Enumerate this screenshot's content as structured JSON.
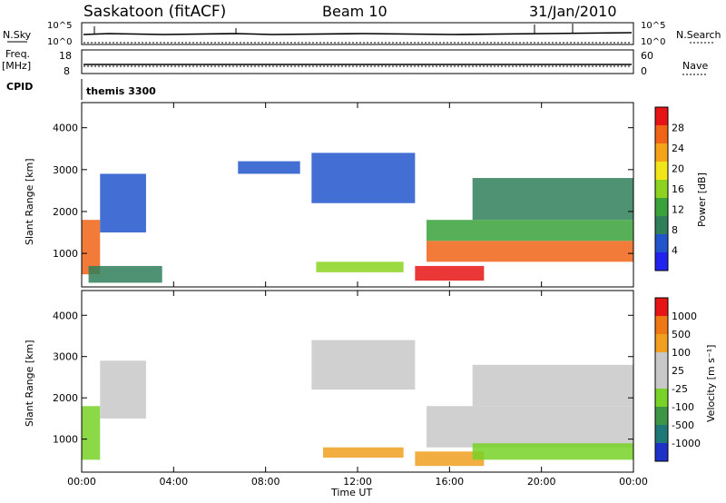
{
  "header": {
    "station": "Saskatoon (fitACF)",
    "beam": "Beam 10",
    "date": "31/Jan/2010"
  },
  "status_panel": {
    "nsky_label": "N.Sky",
    "nsearch_label": "N.Search",
    "freq_label": "Freq.",
    "freq_unit": "[MHz]",
    "nave_label": "Nave",
    "cpid_label": "CPID",
    "cpid_value": "themis 3300",
    "noise_ticks": [
      "10^5",
      "10^0"
    ],
    "freq_ticks": [
      "18",
      "8"
    ],
    "nave_ticks": [
      "60",
      "0"
    ]
  },
  "chart_data": [
    {
      "type": "heatmap",
      "name": "power",
      "ylabel": "Slant Range [km]",
      "xlabel": "",
      "x_ticks": [
        "00:00",
        "04:00",
        "08:00",
        "12:00",
        "16:00",
        "20:00",
        "00:00"
      ],
      "y_ticks": [
        "1000",
        "2000",
        "3000",
        "4000"
      ],
      "xlim_hours": [
        0,
        24
      ],
      "ylim_km": [
        200,
        4600
      ],
      "colorbar": {
        "label": "Power [dB]",
        "ticks": [
          "4",
          "8",
          "12",
          "16",
          "20",
          "24",
          "28"
        ],
        "colors": [
          "#2222ee",
          "#2255cc",
          "#2f7f5a",
          "#3aa23a",
          "#8cd21e",
          "#f0e619",
          "#f5a41a",
          "#f06418",
          "#e61414"
        ]
      },
      "regions": [
        {
          "t0": 0.0,
          "t1": 0.8,
          "r0": 500,
          "r1": 1800,
          "level": 7
        },
        {
          "t0": 0.8,
          "t1": 2.8,
          "r0": 1500,
          "r1": 2900,
          "level": 1
        },
        {
          "t0": 0.3,
          "t1": 3.5,
          "r0": 300,
          "r1": 700,
          "level": 2
        },
        {
          "t0": 10.2,
          "t1": 14.0,
          "r0": 550,
          "r1": 800,
          "level": 4
        },
        {
          "t0": 10.0,
          "t1": 14.5,
          "r0": 2200,
          "r1": 3400,
          "level": 1
        },
        {
          "t0": 14.5,
          "t1": 17.5,
          "r0": 350,
          "r1": 700,
          "level": 8
        },
        {
          "t0": 15.0,
          "t1": 24.0,
          "r0": 800,
          "r1": 1300,
          "level": 7
        },
        {
          "t0": 15.0,
          "t1": 24.0,
          "r0": 1300,
          "r1": 1800,
          "level": 3
        },
        {
          "t0": 17.0,
          "t1": 24.0,
          "r0": 1800,
          "r1": 2800,
          "level": 2
        },
        {
          "t0": 6.8,
          "t1": 9.5,
          "r0": 2900,
          "r1": 3200,
          "level": 1
        }
      ]
    },
    {
      "type": "heatmap",
      "name": "velocity",
      "ylabel": "Slant Range [km]",
      "xlabel": "Time UT",
      "x_ticks": [
        "00:00",
        "04:00",
        "08:00",
        "12:00",
        "16:00",
        "20:00",
        "00:00"
      ],
      "y_ticks": [
        "1000",
        "2000",
        "3000",
        "4000"
      ],
      "xlim_hours": [
        0,
        24
      ],
      "ylim_km": [
        200,
        4600
      ],
      "colorbar": {
        "label": "Velocity [m s⁻¹]",
        "ticks": [
          "1000",
          "500",
          "100",
          "25",
          "-25",
          "-100",
          "-500",
          "-1000"
        ],
        "colors": [
          "#1e32c8",
          "#1e7878",
          "#3c9646",
          "#78d228",
          "#c8c8c8",
          "#c8c8c8",
          "#f0a01e",
          "#f07814",
          "#e61414"
        ]
      },
      "regions": [
        {
          "t0": 0.0,
          "t1": 0.8,
          "r0": 500,
          "r1": 1800,
          "level": 3
        },
        {
          "t0": 0.8,
          "t1": 2.8,
          "r0": 1500,
          "r1": 2900,
          "level": 4
        },
        {
          "t0": 10.5,
          "t1": 14.0,
          "r0": 550,
          "r1": 800,
          "level": 6
        },
        {
          "t0": 10.0,
          "t1": 14.5,
          "r0": 2200,
          "r1": 3400,
          "level": 4
        },
        {
          "t0": 14.5,
          "t1": 17.5,
          "r0": 350,
          "r1": 700,
          "level": 6
        },
        {
          "t0": 15.0,
          "t1": 24.0,
          "r0": 800,
          "r1": 1800,
          "level": 4
        },
        {
          "t0": 17.0,
          "t1": 24.0,
          "r0": 500,
          "r1": 900,
          "level": 3
        },
        {
          "t0": 17.0,
          "t1": 24.0,
          "r0": 1800,
          "r1": 2800,
          "level": 5
        }
      ]
    }
  ]
}
